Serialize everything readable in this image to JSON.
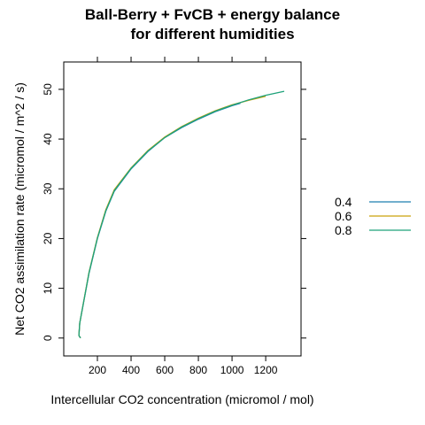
{
  "chart_data": {
    "type": "line",
    "title": [
      "Ball-Berry + FvCB + energy balance",
      "for different humidities"
    ],
    "x_label": "Intercellular CO2 concentration (micromol / mol)",
    "y_label": "Net CO2 assimilation rate (micromol / m^2 / s)",
    "xlim": [
      0,
      1410
    ],
    "ylim": [
      -3.6,
      55.5
    ],
    "xticks": [
      200,
      400,
      600,
      800,
      1000,
      1200
    ],
    "yticks": [
      0,
      10,
      20,
      30,
      40,
      50
    ],
    "series": [
      {
        "name": "0.4",
        "color": "#1f7fb0",
        "x": [
          100,
          90,
          95,
          150,
          200,
          250,
          300,
          400,
          500,
          600,
          700,
          800,
          900,
          1000,
          1050
        ],
        "values": [
          0,
          0.5,
          3,
          13,
          20,
          25.5,
          29.5,
          34,
          37.5,
          40.3,
          42.3,
          44,
          45.5,
          46.7,
          47.2
        ]
      },
      {
        "name": "0.6",
        "color": "#c9a20a",
        "x": [
          100,
          90,
          95,
          150,
          200,
          250,
          300,
          400,
          500,
          600,
          700,
          800,
          900,
          1000,
          1100,
          1200
        ],
        "values": [
          0,
          0.5,
          3,
          13.2,
          20.2,
          25.8,
          29.8,
          34.2,
          37.7,
          40.4,
          42.5,
          44.2,
          45.7,
          46.9,
          47.8,
          48.6
        ]
      },
      {
        "name": "0.8",
        "color": "#1ea27a",
        "x": [
          100,
          90,
          95,
          150,
          200,
          250,
          300,
          400,
          500,
          600,
          700,
          800,
          900,
          1000,
          1100,
          1200,
          1310
        ],
        "values": [
          0,
          0.5,
          3,
          13.1,
          20.1,
          25.6,
          29.6,
          34.1,
          37.6,
          40.3,
          42.4,
          44.1,
          45.6,
          46.8,
          47.9,
          48.8,
          49.6
        ]
      }
    ]
  }
}
